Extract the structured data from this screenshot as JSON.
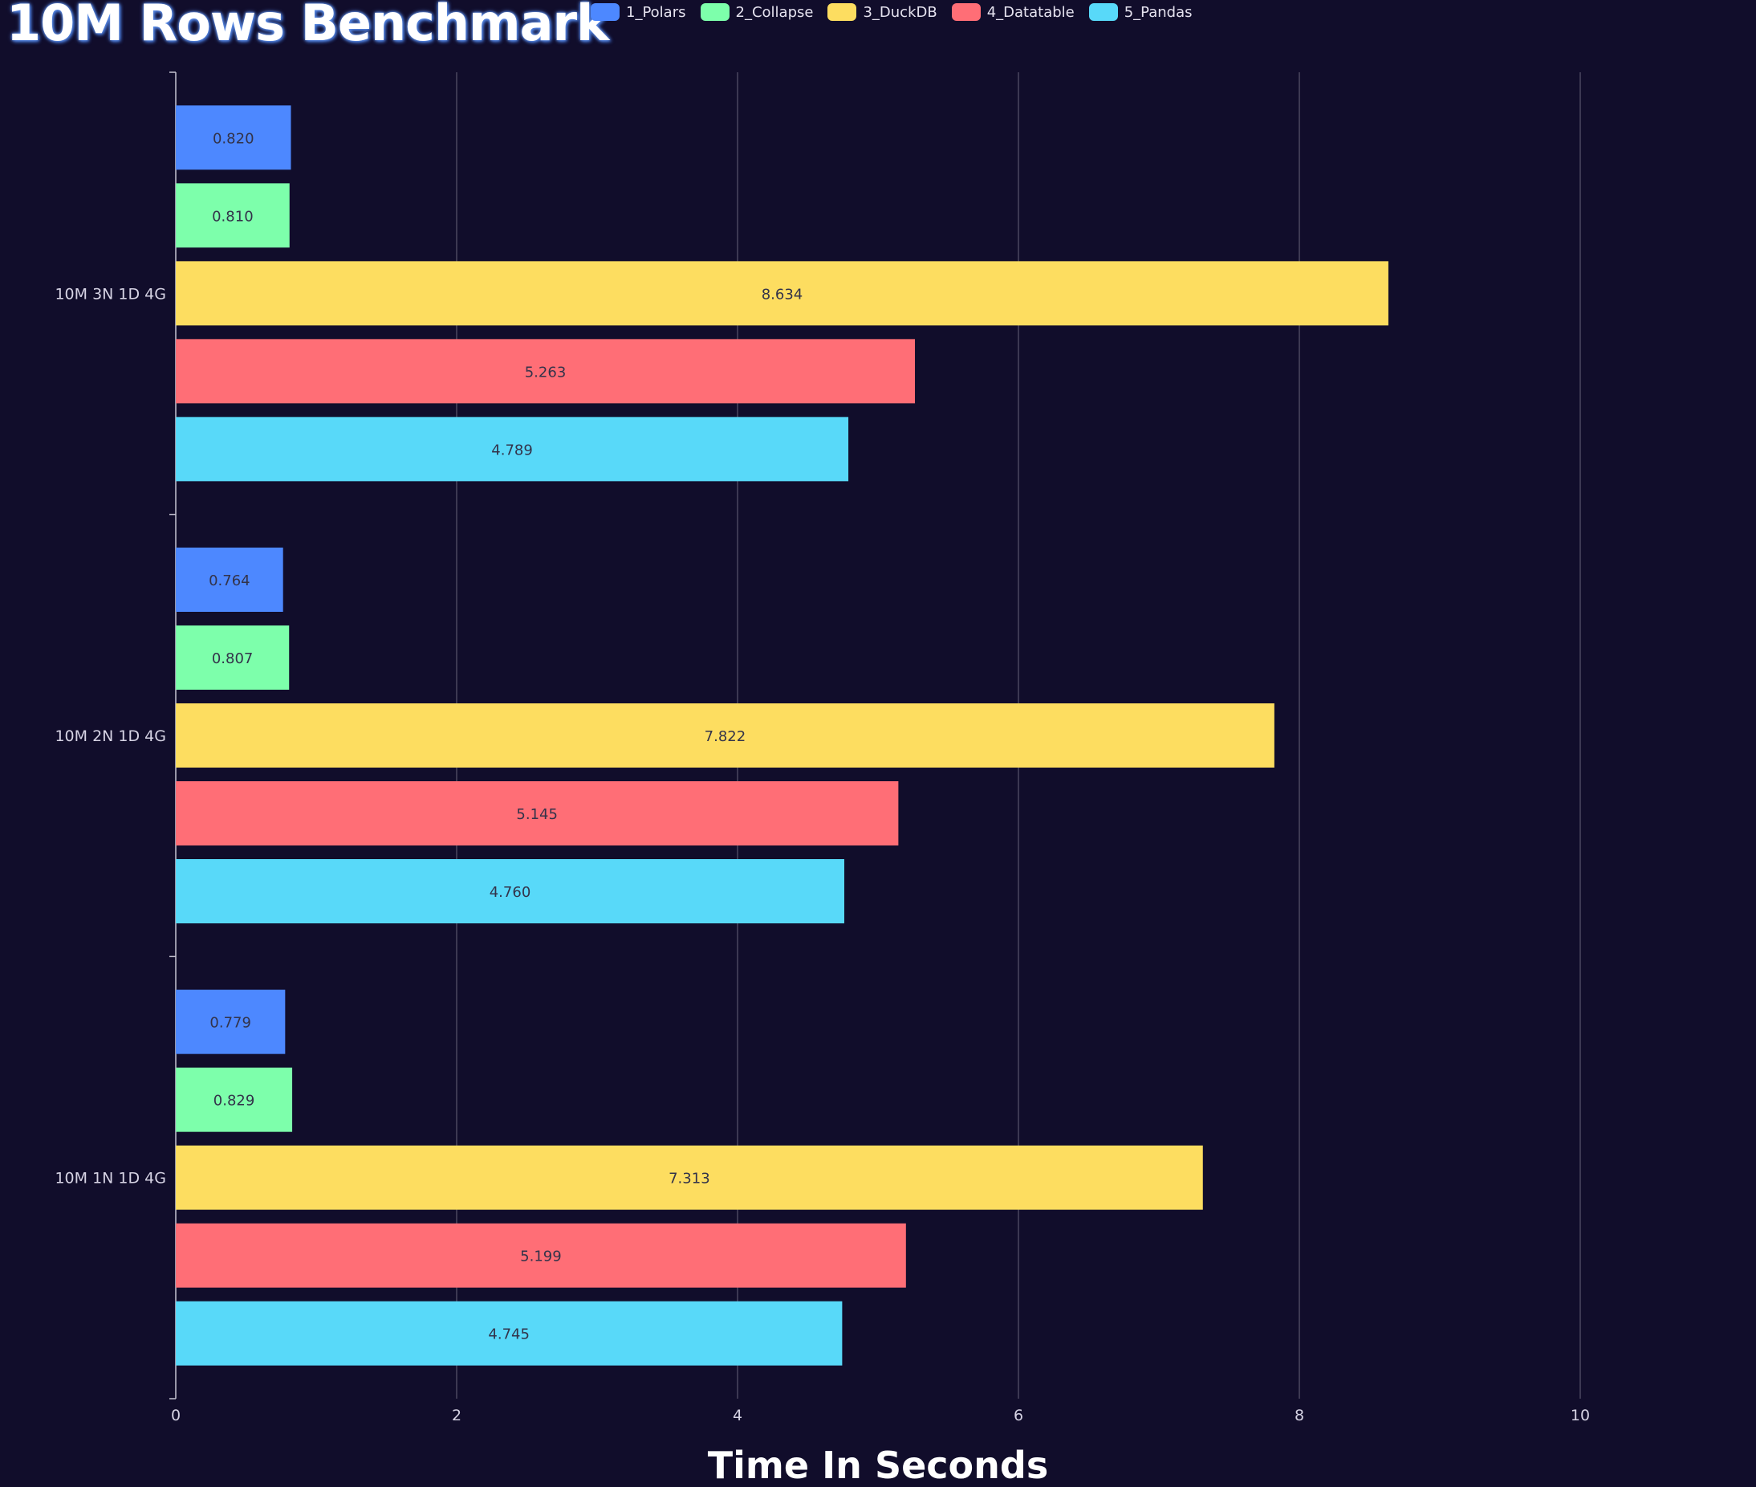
{
  "chart_data": {
    "type": "bar",
    "orientation": "horizontal",
    "title": "10M Rows Benchmark",
    "xlabel": "Time In Seconds",
    "ylabel": "",
    "xlim": [
      0,
      11
    ],
    "x_ticks": [
      "0",
      "2",
      "4",
      "6",
      "8",
      "10"
    ],
    "grid": "vertical",
    "legend_position": "top",
    "categories": [
      "10M 3N 1D 4G",
      "10M 2N 1D 4G",
      "10M 1N 1D 4G"
    ],
    "series": [
      {
        "name": "1_Polars",
        "color": "#4d88ff",
        "values": [
          0.82,
          0.764,
          0.779
        ],
        "labels": [
          "0.820",
          "0.764",
          "0.779"
        ]
      },
      {
        "name": "2_Collapse",
        "color": "#7dffab",
        "values": [
          0.81,
          0.807,
          0.829
        ],
        "labels": [
          "0.810",
          "0.807",
          "0.829"
        ]
      },
      {
        "name": "3_DuckDB",
        "color": "#fddd60",
        "values": [
          8.634,
          7.822,
          7.313
        ],
        "labels": [
          "8.634",
          "7.822",
          "7.313"
        ]
      },
      {
        "name": "4_Datatable",
        "color": "#ff6e76",
        "values": [
          5.263,
          5.145,
          5.199
        ],
        "labels": [
          "5.263",
          "5.145",
          "5.199"
        ]
      },
      {
        "name": "5_Pandas",
        "color": "#58d9f9",
        "values": [
          4.789,
          4.76,
          4.745
        ],
        "labels": [
          "4.789",
          "4.760",
          "4.745"
        ]
      }
    ]
  }
}
